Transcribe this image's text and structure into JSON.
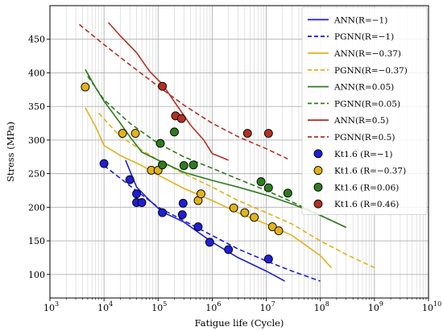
{
  "chart_data": {
    "type": "scatter",
    "xlabel": "Fatigue life (Cycle)",
    "ylabel": "Stress (MPa)",
    "xscale": "log",
    "xlim": [
      1000,
      10000000000
    ],
    "ylim": [
      65,
      500
    ],
    "xticks": [
      {
        "value": 1000,
        "base": "10",
        "exp": "3"
      },
      {
        "value": 10000,
        "base": "10",
        "exp": "4"
      },
      {
        "value": 100000,
        "base": "10",
        "exp": "5"
      },
      {
        "value": 1000000,
        "base": "10",
        "exp": "6"
      },
      {
        "value": 10000000,
        "base": "10",
        "exp": "7"
      },
      {
        "value": 100000000,
        "base": "10",
        "exp": "8"
      },
      {
        "value": 1000000000,
        "base": "10",
        "exp": "9"
      },
      {
        "value": 10000000000,
        "base": "10",
        "exp": "10"
      }
    ],
    "yticks": [
      "100",
      "150",
      "200",
      "250",
      "300",
      "350",
      "400",
      "450"
    ],
    "grid": true,
    "legend_position": "top-right",
    "series": [
      {
        "name": "ANN(R=−1)",
        "kind": "line",
        "dash": false,
        "color": "#1f1fd6",
        "x": [
          25000,
          40000,
          70000,
          120000,
          300000,
          1000000,
          3000000,
          10000000,
          22000000
        ],
        "y": [
          270,
          230,
          210,
          193,
          178,
          148,
          125,
          105,
          90
        ]
      },
      {
        "name": "PGNN(R=−1)",
        "kind": "line",
        "dash": true,
        "color": "#1f1fd6",
        "x": [
          10000,
          30000,
          100000,
          300000,
          1000000,
          3000000,
          10000000,
          30000000,
          100000000
        ],
        "y": [
          262,
          232,
          200,
          180,
          158,
          138,
          120,
          105,
          90
        ]
      },
      {
        "name": "ANN(R=−0.37)",
        "kind": "line",
        "dash": false,
        "color": "#e3b21a",
        "x": [
          4500,
          7000,
          10000,
          20000,
          50000,
          100000,
          300000,
          1000000,
          3000000,
          10000000,
          30000000,
          100000000,
          160000000
        ],
        "y": [
          348,
          320,
          292,
          277,
          262,
          248,
          228,
          210,
          192,
          175,
          158,
          128,
          110
        ]
      },
      {
        "name": "PGNN(R=−0.37)",
        "kind": "line",
        "dash": true,
        "color": "#e3b21a",
        "x": [
          8000,
          20000,
          50000,
          100000,
          300000,
          1000000,
          3000000,
          10000000,
          30000000,
          100000000,
          300000000,
          1000000000
        ],
        "y": [
          340,
          305,
          285,
          270,
          250,
          230,
          210,
          192,
          175,
          150,
          130,
          110
        ]
      },
      {
        "name": "ANN(R=0.05)",
        "kind": "line",
        "dash": false,
        "color": "#2e7d1d",
        "x": [
          4500,
          7000,
          10000,
          20000,
          30000,
          50000,
          100000,
          300000,
          1000000,
          3000000,
          10000000,
          30000000,
          100000000,
          300000000
        ],
        "y": [
          405,
          378,
          358,
          325,
          305,
          282,
          270,
          252,
          240,
          230,
          218,
          205,
          188,
          170
        ]
      },
      {
        "name": "PGNN(R=0.05)",
        "kind": "line",
        "dash": true,
        "color": "#2e7d1d",
        "x": [
          5000,
          10000,
          30000,
          100000,
          300000,
          1000000,
          3000000,
          10000000,
          30000000,
          100000000,
          300000000
        ],
        "y": [
          395,
          360,
          325,
          295,
          275,
          258,
          242,
          225,
          208,
          188,
          170
        ]
      },
      {
        "name": "ANN(R=0.5)",
        "kind": "line",
        "dash": false,
        "color": "#b23222",
        "x": [
          12000,
          20000,
          40000,
          70000,
          120000,
          200000,
          400000,
          700000,
          1000000,
          2000000
        ],
        "y": [
          475,
          455,
          430,
          402,
          383,
          357,
          322,
          300,
          280,
          270
        ]
      },
      {
        "name": "PGNN(R=0.5)",
        "kind": "line",
        "dash": true,
        "color": "#b23222",
        "x": [
          3500,
          10000,
          30000,
          100000,
          300000,
          1000000,
          3000000,
          10000000,
          25000000
        ],
        "y": [
          472,
          442,
          412,
          380,
          352,
          325,
          305,
          287,
          272
        ]
      },
      {
        "name": "Kt1.6 (R=−1)",
        "kind": "scatter",
        "color": "#1f1fd6",
        "x": [
          10000,
          30000,
          40000,
          40000,
          50000,
          120000,
          280000,
          290000,
          550000,
          900000,
          2000000,
          11000000
        ],
        "y": [
          265,
          241,
          220,
          207,
          207,
          192,
          189,
          206,
          171,
          148,
          137,
          123
        ]
      },
      {
        "name": "Kt1.6 (R=−0.37)",
        "kind": "scatter",
        "color": "#e3b21a",
        "x": [
          4500,
          22000,
          38000,
          75000,
          100000,
          550000,
          620000,
          2500000,
          4000000,
          6000000,
          13000000,
          17000000
        ],
        "y": [
          379,
          310,
          310,
          255,
          255,
          210,
          220,
          199,
          192,
          185,
          171,
          165
        ]
      },
      {
        "name": "Kt1.6 (R=0.06)",
        "kind": "scatter",
        "color": "#2e7d1d",
        "x": [
          110000,
          120000,
          200000,
          300000,
          450000,
          8000000,
          11000000,
          25000000
        ],
        "y": [
          295,
          263,
          312,
          262,
          263,
          238,
          229,
          221
        ]
      },
      {
        "name": "Kt1.6 (R=0.46)",
        "kind": "scatter",
        "color": "#b23222",
        "x": [
          120000,
          210000,
          270000,
          4500000,
          11000000
        ],
        "y": [
          380,
          336,
          332,
          310,
          310
        ]
      }
    ]
  }
}
